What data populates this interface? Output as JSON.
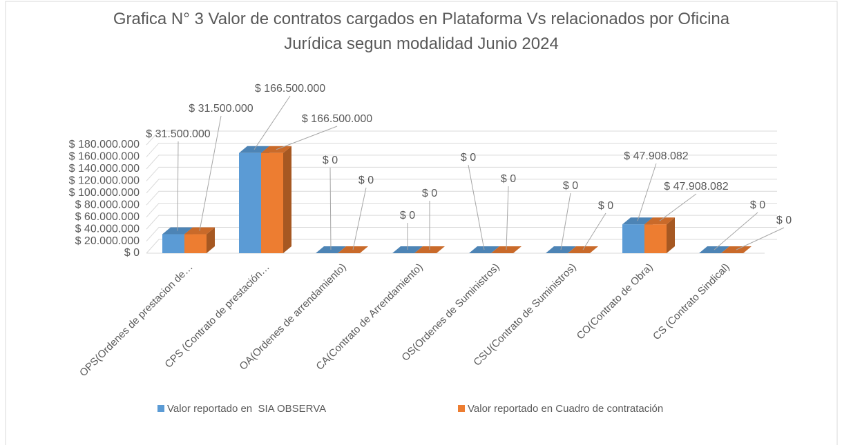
{
  "chart_data": {
    "type": "bar",
    "title": "Grafica N° 3 Valor de contratos cargados en Plataforma Vs relacionados por Oficina Jurídica segun modalidad Junio 2024",
    "categories": [
      "OPS(Ordenes de prestacion de…",
      "CPS (Contrato de prestación…",
      "OA(Ordenes de arrendamiento)",
      "CA(Contrato de Arrendamiento)",
      "OS(Ordenes de Suministros)",
      "CSU(Contrato de Suministros)",
      "CO(Contrato de Obra)",
      "CS (Contrato Sindical)"
    ],
    "series": [
      {
        "name": "Valor reportado en  SIA OBSERVA",
        "color": "#5b9bd5",
        "values": [
          31500000,
          166500000,
          0,
          0,
          0,
          0,
          47908082,
          0
        ],
        "value_labels": [
          "$ 31.500.000",
          "$ 166.500.000",
          "$ 0",
          "$ 0",
          "$ 0",
          "$ 0",
          "$ 47.908.082",
          "$ 0"
        ]
      },
      {
        "name": "Valor reportado en Cuadro de contratación",
        "color": "#ed7d31",
        "values": [
          31500000,
          166500000,
          0,
          0,
          0,
          0,
          47908082,
          0
        ],
        "value_labels": [
          "$ 31.500.000",
          "$ 166.500.000",
          "$ 0",
          "$ 0",
          "$ 0",
          "$ 0",
          "$ 47.908.082",
          "$ 0"
        ]
      }
    ],
    "ylim": [
      0,
      180000000
    ],
    "yticks": [
      {
        "value": 0,
        "label": "$ 0"
      },
      {
        "value": 20000000,
        "label": "$ 20.000.000"
      },
      {
        "value": 40000000,
        "label": "$ 40.000.000"
      },
      {
        "value": 60000000,
        "label": "$ 60.000.000"
      },
      {
        "value": 80000000,
        "label": "$ 80.000.000"
      },
      {
        "value": 100000000,
        "label": "$ 100.000.000"
      },
      {
        "value": 120000000,
        "label": "$ 120.000.000"
      },
      {
        "value": 140000000,
        "label": "$ 140.000.000"
      },
      {
        "value": 160000000,
        "label": "$ 160.000.000"
      },
      {
        "value": 180000000,
        "label": "$ 180.000.000"
      }
    ],
    "grid": true,
    "legend": "bottom"
  }
}
